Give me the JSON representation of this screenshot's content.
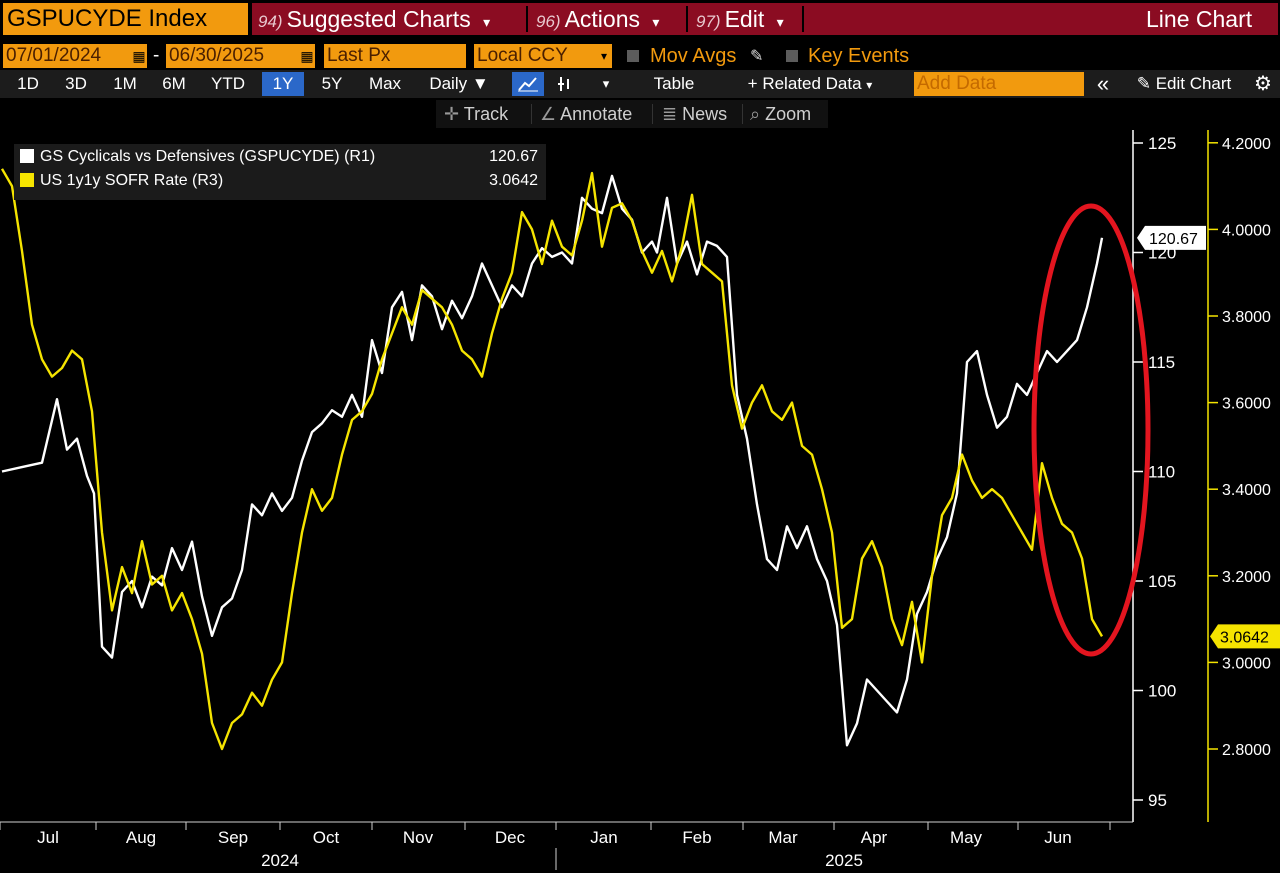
{
  "header": {
    "ticker": "GSPUCYDE Index",
    "menu": [
      {
        "num": "94)",
        "label": "Suggested Charts",
        "caret": "▾"
      },
      {
        "num": "96)",
        "label": "Actions",
        "caret": "▾"
      },
      {
        "num": "97)",
        "label": "Edit",
        "caret": "▾"
      }
    ],
    "chart_type": "Line Chart"
  },
  "controls": {
    "start_date": "07/01/2024",
    "end_date": "06/30/2025",
    "date_sep": "-",
    "field": "Last Px",
    "currency": "Local CCY",
    "mov_avgs": "Mov Avgs",
    "key_events": "Key Events"
  },
  "toolbar": {
    "ranges": [
      "1D",
      "3D",
      "1M",
      "6M",
      "YTD",
      "1Y",
      "5Y",
      "Max"
    ],
    "active_range": "1Y",
    "frequency": "Daily",
    "table_label": "Table",
    "related_data": "+ Related Data",
    "add_data_placeholder": "Add Data",
    "collapse": "«",
    "edit_chart": "Edit Chart"
  },
  "tools": {
    "track": "Track",
    "annotate": "Annotate",
    "news": "News",
    "zoom": "Zoom"
  },
  "colors": {
    "series1": "#ffffff",
    "series2": "#f5e400",
    "annotation": "#e3151f",
    "accent": "#f29a0e",
    "header_bar": "#8b0c22"
  },
  "chart_data": {
    "type": "line",
    "legend": [
      {
        "name": "GS Cyclicals vs Defensives (GSPUCYDE) (R1)",
        "last": "120.67"
      },
      {
        "name": "US 1y1y SOFR Rate (R3)",
        "last": "3.0642"
      }
    ],
    "x_months": [
      "Jul",
      "Aug",
      "Sep",
      "Oct",
      "Nov",
      "Dec",
      "Jan",
      "Feb",
      "Mar",
      "Apr",
      "May",
      "Jun"
    ],
    "x_years": [
      "2024",
      "2025"
    ],
    "left_axis": {
      "min": 95,
      "max": 125,
      "ticks": [
        "95",
        "100",
        "105",
        "110",
        "115",
        "120",
        "125"
      ]
    },
    "right_axis": {
      "min": 2.7,
      "max": 4.25,
      "ticks": [
        "2.8000",
        "3.0000",
        "3.2000",
        "3.4000",
        "3.6000",
        "3.8000",
        "4.0000",
        "4.2000"
      ]
    },
    "series": [
      {
        "name": "GS Cyclicals vs Defensives (GSPUCYDE) (R1)",
        "axis": "left",
        "last_label": "120.67",
        "points": [
          [
            0.0,
            110.0
          ],
          [
            0.02,
            110.2
          ],
          [
            0.04,
            110.4
          ],
          [
            0.055,
            113.3
          ],
          [
            0.065,
            111.0
          ],
          [
            0.075,
            111.5
          ],
          [
            0.085,
            109.8
          ],
          [
            0.092,
            109.0
          ],
          [
            0.1,
            102.0
          ],
          [
            0.11,
            101.5
          ],
          [
            0.12,
            104.5
          ],
          [
            0.13,
            105.0
          ],
          [
            0.14,
            103.8
          ],
          [
            0.15,
            105.2
          ],
          [
            0.16,
            104.8
          ],
          [
            0.17,
            106.5
          ],
          [
            0.18,
            105.5
          ],
          [
            0.19,
            106.8
          ],
          [
            0.2,
            104.3
          ],
          [
            0.21,
            102.5
          ],
          [
            0.22,
            103.8
          ],
          [
            0.23,
            104.2
          ],
          [
            0.24,
            105.5
          ],
          [
            0.25,
            108.5
          ],
          [
            0.26,
            108.0
          ],
          [
            0.27,
            109.0
          ],
          [
            0.28,
            108.2
          ],
          [
            0.29,
            108.8
          ],
          [
            0.3,
            110.5
          ],
          [
            0.31,
            111.8
          ],
          [
            0.32,
            112.2
          ],
          [
            0.33,
            112.8
          ],
          [
            0.34,
            112.5
          ],
          [
            0.35,
            113.5
          ],
          [
            0.36,
            112.5
          ],
          [
            0.37,
            116.0
          ],
          [
            0.38,
            114.5
          ],
          [
            0.39,
            117.5
          ],
          [
            0.4,
            118.2
          ],
          [
            0.41,
            116.0
          ],
          [
            0.42,
            118.5
          ],
          [
            0.43,
            118.0
          ],
          [
            0.44,
            116.5
          ],
          [
            0.45,
            117.8
          ],
          [
            0.46,
            117.0
          ],
          [
            0.47,
            118.0
          ],
          [
            0.48,
            119.5
          ],
          [
            0.49,
            118.5
          ],
          [
            0.5,
            117.5
          ],
          [
            0.51,
            118.5
          ],
          [
            0.52,
            118.0
          ],
          [
            0.53,
            119.5
          ],
          [
            0.54,
            120.2
          ],
          [
            0.55,
            119.8
          ],
          [
            0.56,
            120.0
          ],
          [
            0.57,
            119.5
          ],
          [
            0.58,
            122.5
          ],
          [
            0.59,
            122.0
          ],
          [
            0.6,
            121.8
          ],
          [
            0.61,
            123.5
          ],
          [
            0.62,
            122.0
          ],
          [
            0.63,
            121.5
          ],
          [
            0.64,
            120.0
          ],
          [
            0.65,
            120.5
          ],
          [
            0.655,
            120.0
          ],
          [
            0.665,
            122.5
          ],
          [
            0.675,
            119.5
          ],
          [
            0.685,
            120.5
          ],
          [
            0.695,
            119.0
          ],
          [
            0.705,
            120.5
          ],
          [
            0.715,
            120.3
          ],
          [
            0.725,
            119.8
          ],
          [
            0.735,
            113.5
          ],
          [
            0.745,
            111.5
          ],
          [
            0.755,
            108.5
          ],
          [
            0.765,
            106.0
          ],
          [
            0.775,
            105.5
          ],
          [
            0.785,
            107.5
          ],
          [
            0.795,
            106.5
          ],
          [
            0.805,
            107.5
          ],
          [
            0.815,
            106.0
          ],
          [
            0.825,
            105.0
          ],
          [
            0.835,
            103.0
          ],
          [
            0.845,
            97.5
          ],
          [
            0.855,
            98.5
          ],
          [
            0.865,
            100.5
          ],
          [
            0.875,
            100.0
          ],
          [
            0.885,
            99.5
          ],
          [
            0.895,
            99.0
          ],
          [
            0.905,
            100.5
          ],
          [
            0.915,
            103.5
          ],
          [
            0.925,
            104.5
          ],
          [
            0.935,
            106.0
          ],
          [
            0.945,
            107.0
          ],
          [
            0.955,
            109.0
          ],
          [
            0.965,
            115.0
          ],
          [
            0.975,
            115.5
          ],
          [
            0.985,
            113.5
          ],
          [
            0.995,
            112.0
          ],
          [
            1.005,
            112.5
          ],
          [
            1.015,
            114.0
          ],
          [
            1.025,
            113.5
          ],
          [
            1.035,
            114.5
          ],
          [
            1.045,
            115.5
          ],
          [
            1.055,
            115.0
          ],
          [
            1.065,
            115.5
          ],
          [
            1.075,
            116.0
          ],
          [
            1.085,
            117.5
          ],
          [
            1.095,
            119.5
          ],
          [
            1.1,
            120.67
          ]
        ]
      },
      {
        "name": "US 1y1y SOFR Rate (R3)",
        "axis": "right",
        "last_label": "3.0642",
        "points": [
          [
            0.0,
            4.14
          ],
          [
            0.01,
            4.1
          ],
          [
            0.02,
            3.95
          ],
          [
            0.03,
            3.78
          ],
          [
            0.04,
            3.7
          ],
          [
            0.05,
            3.66
          ],
          [
            0.06,
            3.68
          ],
          [
            0.07,
            3.72
          ],
          [
            0.08,
            3.7
          ],
          [
            0.09,
            3.58
          ],
          [
            0.1,
            3.3
          ],
          [
            0.11,
            3.12
          ],
          [
            0.12,
            3.22
          ],
          [
            0.13,
            3.16
          ],
          [
            0.14,
            3.28
          ],
          [
            0.15,
            3.18
          ],
          [
            0.16,
            3.2
          ],
          [
            0.17,
            3.12
          ],
          [
            0.18,
            3.16
          ],
          [
            0.19,
            3.1
          ],
          [
            0.2,
            3.02
          ],
          [
            0.21,
            2.86
          ],
          [
            0.22,
            2.8
          ],
          [
            0.23,
            2.86
          ],
          [
            0.24,
            2.88
          ],
          [
            0.25,
            2.93
          ],
          [
            0.26,
            2.9
          ],
          [
            0.27,
            2.96
          ],
          [
            0.28,
            3.0
          ],
          [
            0.29,
            3.16
          ],
          [
            0.3,
            3.3
          ],
          [
            0.31,
            3.4
          ],
          [
            0.32,
            3.35
          ],
          [
            0.33,
            3.38
          ],
          [
            0.34,
            3.48
          ],
          [
            0.35,
            3.56
          ],
          [
            0.36,
            3.58
          ],
          [
            0.37,
            3.62
          ],
          [
            0.38,
            3.7
          ],
          [
            0.39,
            3.76
          ],
          [
            0.4,
            3.82
          ],
          [
            0.41,
            3.78
          ],
          [
            0.42,
            3.86
          ],
          [
            0.43,
            3.84
          ],
          [
            0.44,
            3.82
          ],
          [
            0.45,
            3.78
          ],
          [
            0.46,
            3.72
          ],
          [
            0.47,
            3.7
          ],
          [
            0.48,
            3.66
          ],
          [
            0.49,
            3.76
          ],
          [
            0.5,
            3.84
          ],
          [
            0.51,
            3.9
          ],
          [
            0.52,
            4.04
          ],
          [
            0.53,
            4.0
          ],
          [
            0.54,
            3.92
          ],
          [
            0.55,
            4.02
          ],
          [
            0.56,
            3.96
          ],
          [
            0.57,
            3.94
          ],
          [
            0.58,
            4.02
          ],
          [
            0.59,
            4.13
          ],
          [
            0.6,
            3.96
          ],
          [
            0.61,
            4.05
          ],
          [
            0.62,
            4.06
          ],
          [
            0.63,
            4.02
          ],
          [
            0.64,
            3.95
          ],
          [
            0.65,
            3.9
          ],
          [
            0.66,
            3.95
          ],
          [
            0.67,
            3.88
          ],
          [
            0.68,
            3.96
          ],
          [
            0.69,
            4.08
          ],
          [
            0.7,
            3.92
          ],
          [
            0.71,
            3.9
          ],
          [
            0.72,
            3.88
          ],
          [
            0.73,
            3.64
          ],
          [
            0.74,
            3.54
          ],
          [
            0.75,
            3.6
          ],
          [
            0.76,
            3.64
          ],
          [
            0.77,
            3.58
          ],
          [
            0.78,
            3.56
          ],
          [
            0.79,
            3.6
          ],
          [
            0.8,
            3.5
          ],
          [
            0.81,
            3.48
          ],
          [
            0.82,
            3.4
          ],
          [
            0.83,
            3.3
          ],
          [
            0.84,
            3.08
          ],
          [
            0.85,
            3.1
          ],
          [
            0.86,
            3.24
          ],
          [
            0.87,
            3.28
          ],
          [
            0.88,
            3.22
          ],
          [
            0.89,
            3.1
          ],
          [
            0.9,
            3.04
          ],
          [
            0.91,
            3.14
          ],
          [
            0.92,
            3.0
          ],
          [
            0.93,
            3.2
          ],
          [
            0.94,
            3.34
          ],
          [
            0.95,
            3.38
          ],
          [
            0.96,
            3.48
          ],
          [
            0.97,
            3.42
          ],
          [
            0.98,
            3.38
          ],
          [
            0.99,
            3.4
          ],
          [
            1.0,
            3.38
          ],
          [
            1.01,
            3.34
          ],
          [
            1.02,
            3.3
          ],
          [
            1.03,
            3.26
          ],
          [
            1.04,
            3.46
          ],
          [
            1.05,
            3.38
          ],
          [
            1.06,
            3.32
          ],
          [
            1.07,
            3.3
          ],
          [
            1.08,
            3.24
          ],
          [
            1.09,
            3.1
          ],
          [
            1.1,
            3.06
          ]
        ]
      }
    ]
  }
}
